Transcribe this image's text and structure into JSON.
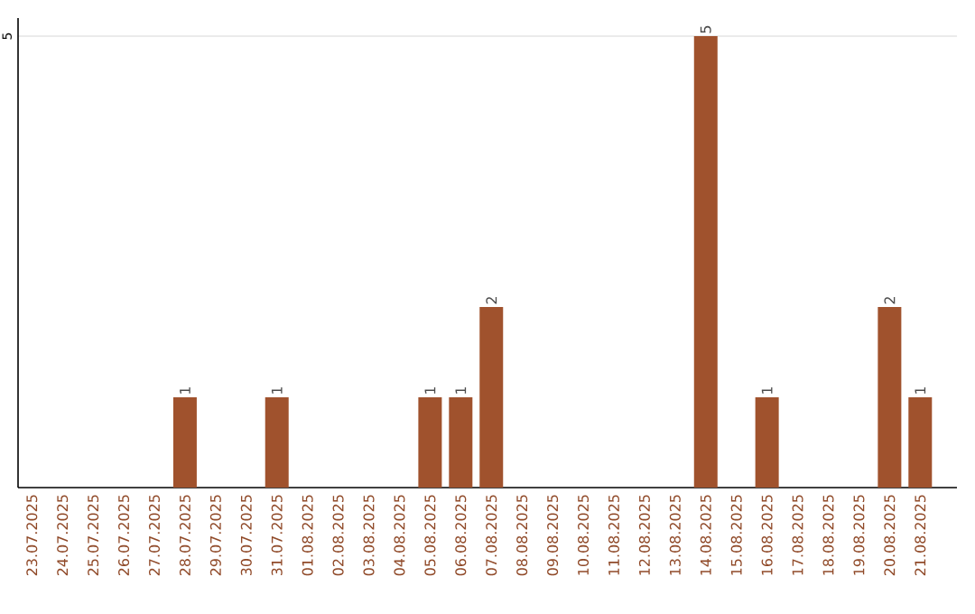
{
  "chart_data": {
    "type": "bar",
    "categories": [
      "23.07.2025",
      "24.07.2025",
      "25.07.2025",
      "26.07.2025",
      "27.07.2025",
      "28.07.2025",
      "29.07.2025",
      "30.07.2025",
      "31.07.2025",
      "01.08.2025",
      "02.08.2025",
      "03.08.2025",
      "04.08.2025",
      "05.08.2025",
      "06.08.2025",
      "07.08.2025",
      "08.08.2025",
      "09.08.2025",
      "10.08.2025",
      "11.08.2025",
      "12.08.2025",
      "13.08.2025",
      "14.08.2025",
      "15.08.2025",
      "16.08.2025",
      "17.08.2025",
      "18.08.2025",
      "19.08.2025",
      "20.08.2025",
      "21.08.2025"
    ],
    "values": [
      0,
      0,
      0,
      0,
      0,
      1,
      0,
      0,
      1,
      0,
      0,
      0,
      0,
      1,
      1,
      2,
      0,
      0,
      0,
      0,
      0,
      0,
      5,
      0,
      1,
      0,
      0,
      0,
      2,
      1
    ],
    "value_labels": [
      null,
      null,
      null,
      null,
      null,
      "1",
      null,
      null,
      "1",
      null,
      null,
      null,
      null,
      "1",
      "1",
      "2",
      null,
      null,
      null,
      null,
      null,
      null,
      "5",
      null,
      "1",
      null,
      null,
      null,
      "2",
      "1"
    ],
    "color": "#a0522d",
    "ylim": [
      0,
      5.2
    ],
    "yticks": [
      5
    ],
    "grid": "y"
  }
}
